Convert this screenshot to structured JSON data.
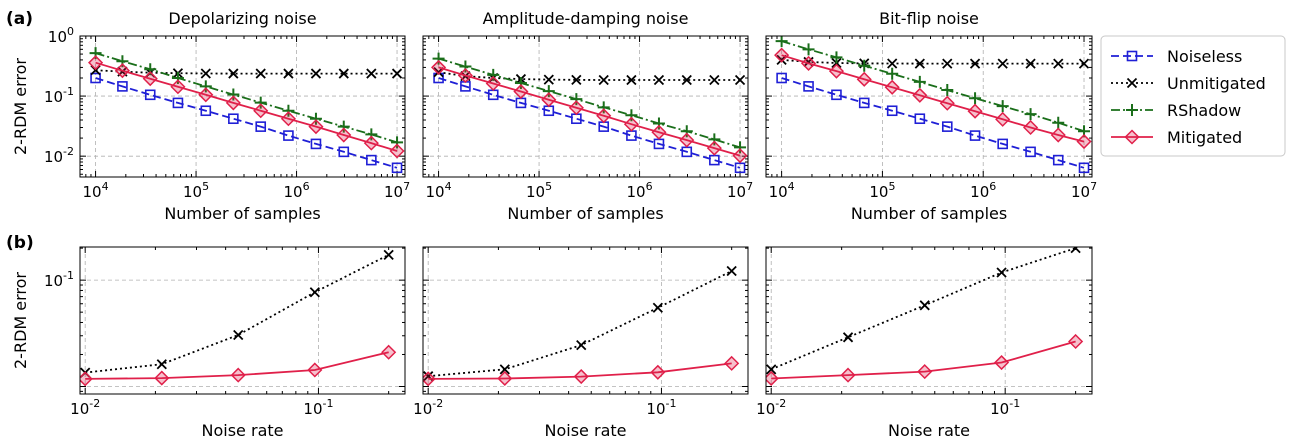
{
  "panel_labels": [
    "(a)",
    "(b)"
  ],
  "colors": {
    "Noiseless": "#1f1fd6",
    "Unmitigated": "#000000",
    "RShadow": "#1a6e1a",
    "Mitigated": "#e0204a"
  },
  "legend": {
    "placement": "right of top row",
    "entries": [
      "Noiseless",
      "Unmitigated",
      "RShadow",
      "Mitigated"
    ]
  },
  "chart_data": [
    {
      "type": "line",
      "row": "a",
      "title": "Depolarizing noise",
      "xlabel": "Number of samples",
      "ylabel": "2-RDM error",
      "xscale": "log",
      "yscale": "log",
      "xlim": [
        7000,
        12000000
      ],
      "ylim": [
        0.0045,
        1.0
      ],
      "xticks": [
        {
          "base": "10",
          "exp": "4",
          "value": 10000
        },
        {
          "base": "10",
          "exp": "5",
          "value": 100000
        },
        {
          "base": "10",
          "exp": "6",
          "value": 1000000
        },
        {
          "base": "10",
          "exp": "7",
          "value": 10000000
        }
      ],
      "yticks": [
        {
          "base": "10",
          "exp": "0",
          "value": 1
        },
        {
          "base": "10",
          "exp": "-1",
          "value": 0.1
        },
        {
          "base": "10",
          "exp": "-2",
          "value": 0.01
        }
      ],
      "grid": true,
      "x": [
        10000,
        18500,
        35000,
        66000,
        125000,
        235000,
        440000,
        830000,
        1560000,
        2950000,
        5550000,
        10000000
      ],
      "series": [
        {
          "name": "Noiseless",
          "values": [
            0.2,
            0.145,
            0.105,
            0.077,
            0.057,
            0.042,
            0.031,
            0.022,
            0.016,
            0.0118,
            0.0086,
            0.0064
          ]
        },
        {
          "name": "Unmitigated",
          "values": [
            0.27,
            0.255,
            0.245,
            0.24,
            0.238,
            0.237,
            0.237,
            0.237,
            0.237,
            0.237,
            0.237,
            0.237
          ]
        },
        {
          "name": "RShadow",
          "values": [
            0.52,
            0.38,
            0.28,
            0.2,
            0.145,
            0.106,
            0.078,
            0.057,
            0.042,
            0.031,
            0.023,
            0.017
          ]
        },
        {
          "name": "Mitigated",
          "values": [
            0.36,
            0.265,
            0.195,
            0.143,
            0.105,
            0.077,
            0.057,
            0.042,
            0.031,
            0.0225,
            0.0165,
            0.0122
          ]
        }
      ]
    },
    {
      "type": "line",
      "row": "a",
      "title": "Amplitude-damping noise",
      "xlabel": "Number of samples",
      "ylabel": "",
      "xscale": "log",
      "yscale": "log",
      "xlim": [
        7000,
        12000000
      ],
      "ylim": [
        0.0045,
        1.0
      ],
      "xticks": [
        {
          "base": "10",
          "exp": "4",
          "value": 10000
        },
        {
          "base": "10",
          "exp": "5",
          "value": 100000
        },
        {
          "base": "10",
          "exp": "6",
          "value": 1000000
        },
        {
          "base": "10",
          "exp": "7",
          "value": 10000000
        }
      ],
      "yticks": [],
      "grid": true,
      "x": [
        10000,
        18500,
        35000,
        66000,
        125000,
        235000,
        440000,
        830000,
        1560000,
        2950000,
        5550000,
        10000000
      ],
      "series": [
        {
          "name": "Noiseless",
          "values": [
            0.2,
            0.145,
            0.105,
            0.077,
            0.057,
            0.042,
            0.031,
            0.022,
            0.016,
            0.0118,
            0.0086,
            0.0064
          ]
        },
        {
          "name": "Unmitigated",
          "values": [
            0.25,
            0.215,
            0.2,
            0.192,
            0.188,
            0.186,
            0.185,
            0.185,
            0.185,
            0.185,
            0.185,
            0.185
          ]
        },
        {
          "name": "RShadow",
          "values": [
            0.42,
            0.31,
            0.225,
            0.165,
            0.121,
            0.089,
            0.065,
            0.048,
            0.035,
            0.026,
            0.019,
            0.014
          ]
        },
        {
          "name": "Mitigated",
          "values": [
            0.3,
            0.22,
            0.162,
            0.119,
            0.087,
            0.064,
            0.047,
            0.034,
            0.025,
            0.0185,
            0.0136,
            0.0102
          ]
        }
      ]
    },
    {
      "type": "line",
      "row": "a",
      "title": "Bit-flip noise",
      "xlabel": "Number of samples",
      "ylabel": "",
      "xscale": "log",
      "yscale": "log",
      "xlim": [
        7000,
        12000000
      ],
      "ylim": [
        0.0045,
        1.0
      ],
      "xticks": [
        {
          "base": "10",
          "exp": "4",
          "value": 10000
        },
        {
          "base": "10",
          "exp": "5",
          "value": 100000
        },
        {
          "base": "10",
          "exp": "6",
          "value": 1000000
        },
        {
          "base": "10",
          "exp": "7",
          "value": 10000000
        }
      ],
      "yticks": [],
      "grid": true,
      "x": [
        10000,
        18500,
        35000,
        66000,
        125000,
        235000,
        440000,
        830000,
        1560000,
        2950000,
        5550000,
        10000000
      ],
      "series": [
        {
          "name": "Noiseless",
          "values": [
            0.2,
            0.145,
            0.105,
            0.077,
            0.057,
            0.042,
            0.031,
            0.022,
            0.016,
            0.0118,
            0.0086,
            0.0064
          ]
        },
        {
          "name": "Unmitigated",
          "values": [
            0.4,
            0.37,
            0.355,
            0.35,
            0.348,
            0.347,
            0.347,
            0.347,
            0.347,
            0.347,
            0.347,
            0.347
          ]
        },
        {
          "name": "RShadow",
          "values": [
            0.82,
            0.6,
            0.44,
            0.32,
            0.235,
            0.172,
            0.126,
            0.092,
            0.068,
            0.05,
            0.036,
            0.026
          ]
        },
        {
          "name": "Mitigated",
          "values": [
            0.48,
            0.35,
            0.26,
            0.19,
            0.14,
            0.103,
            0.076,
            0.056,
            0.041,
            0.03,
            0.0225,
            0.0175
          ]
        }
      ]
    },
    {
      "type": "line",
      "row": "b",
      "title": "",
      "xlabel": "Noise rate",
      "ylabel": "2-RDM error",
      "xscale": "log",
      "yscale": "log",
      "xlim": [
        0.0095,
        0.235
      ],
      "ylim": [
        0.0085,
        0.205
      ],
      "xticks": [
        {
          "base": "10",
          "exp": "-2",
          "value": 0.01
        },
        {
          "base": "10",
          "exp": "-1",
          "value": 0.1
        }
      ],
      "yticks": [
        {
          "base": "10",
          "exp": "-1",
          "value": 0.1
        }
      ],
      "grid": true,
      "x": [
        0.01,
        0.0213,
        0.0453,
        0.0965,
        0.2
      ],
      "series": [
        {
          "name": "Unmitigated",
          "values": [
            0.0135,
            0.0162,
            0.0305,
            0.077,
            0.173
          ]
        },
        {
          "name": "Mitigated",
          "values": [
            0.0118,
            0.012,
            0.0128,
            0.0143,
            0.021
          ]
        }
      ]
    },
    {
      "type": "line",
      "row": "b",
      "title": "",
      "xlabel": "Noise rate",
      "ylabel": "",
      "xscale": "log",
      "yscale": "log",
      "xlim": [
        0.0095,
        0.235
      ],
      "ylim": [
        0.0085,
        0.205
      ],
      "xticks": [
        {
          "base": "10",
          "exp": "-2",
          "value": 0.01
        },
        {
          "base": "10",
          "exp": "-1",
          "value": 0.1
        }
      ],
      "yticks": [],
      "grid": true,
      "x": [
        0.01,
        0.0213,
        0.0453,
        0.0965,
        0.2
      ],
      "series": [
        {
          "name": "Unmitigated",
          "values": [
            0.0125,
            0.0145,
            0.0245,
            0.055,
            0.122
          ]
        },
        {
          "name": "Mitigated",
          "values": [
            0.0118,
            0.0119,
            0.0124,
            0.0136,
            0.0165
          ]
        }
      ]
    },
    {
      "type": "line",
      "row": "b",
      "title": "",
      "xlabel": "Noise rate",
      "ylabel": "",
      "xscale": "log",
      "yscale": "log",
      "xlim": [
        0.0095,
        0.235
      ],
      "ylim": [
        0.0085,
        0.205
      ],
      "xticks": [
        {
          "base": "10",
          "exp": "-2",
          "value": 0.01
        },
        {
          "base": "10",
          "exp": "-1",
          "value": 0.1
        }
      ],
      "yticks": [],
      "grid": true,
      "x": [
        0.01,
        0.0213,
        0.0453,
        0.0965,
        0.2
      ],
      "series": [
        {
          "name": "Unmitigated",
          "values": [
            0.0145,
            0.029,
            0.058,
            0.118,
            0.2
          ]
        },
        {
          "name": "Mitigated",
          "values": [
            0.0119,
            0.0128,
            0.0138,
            0.0168,
            0.0265
          ]
        }
      ]
    }
  ]
}
